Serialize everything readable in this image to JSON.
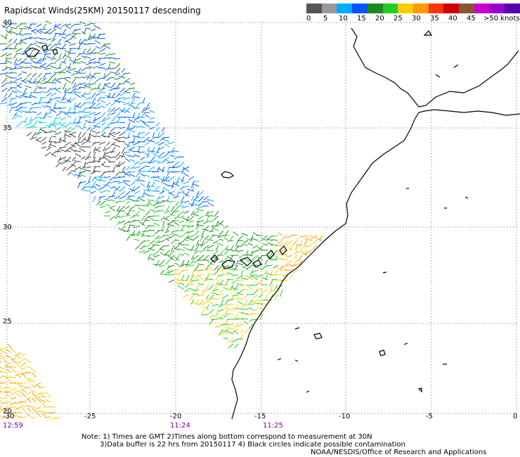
{
  "title": "Rapidscat Winds(25KM) 20150117 descending",
  "legend": {
    "swatch_colors": [
      "#555555",
      "#999999",
      "#00aaff",
      "#0055ff",
      "#1d8a1d",
      "#22cc22",
      "#ffcc00",
      "#ff9900",
      "#ff3300",
      "#cc0000",
      "#885533",
      "#cc00cc",
      "#9900cc",
      "#5500aa"
    ],
    "labels": [
      "0",
      "5",
      "10",
      "15",
      "20",
      "25",
      "30",
      "35",
      "40",
      "45",
      ">50 knots"
    ]
  },
  "axes": {
    "lon_labels": [
      "-30",
      "-25",
      "-20",
      "-15",
      "-10",
      "-5",
      "0"
    ],
    "lat_labels": [
      "40",
      "35",
      "30",
      "25",
      "20"
    ],
    "grid": "dotted"
  },
  "times": [
    "12:59",
    "11:24",
    "11:25"
  ],
  "notes": {
    "line1": "Note: 1) Times are GMT 2)Times along bottom correspond to measurement at 30N",
    "line2": "3)Data buffer is 22 hrs from 20150117 4) Black circles indicate possible contamination",
    "line3": "NOAA/NESDIS/Office of Research and Applications"
  }
}
